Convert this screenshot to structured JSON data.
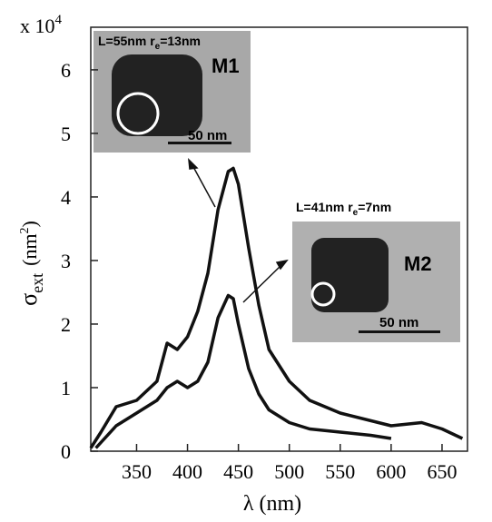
{
  "chart_data": {
    "type": "line",
    "multiplier": {
      "base": "x 10",
      "exponent": "4"
    },
    "x_label": "λ (nm)",
    "y_label": {
      "symbol": "σ",
      "subscript": "ext",
      "unit_pre": "(nm",
      "unit_sup": "2",
      "unit_post": ")"
    },
    "xlim": [
      305,
      675
    ],
    "ylim": [
      0,
      6.67
    ],
    "xticks": [
      350,
      400,
      450,
      500,
      550,
      600,
      650
    ],
    "yticks": [
      0,
      1,
      2,
      3,
      4,
      5,
      6
    ],
    "series": [
      {
        "color": "#111111",
        "x": [
          305,
          315,
          330,
          350,
          370,
          380,
          390,
          400,
          410,
          420,
          430,
          440,
          445,
          450,
          460,
          470,
          480,
          500,
          520,
          550,
          600,
          630,
          650,
          670
        ],
        "values": [
          0.05,
          0.3,
          0.7,
          0.8,
          1.1,
          1.7,
          1.6,
          1.8,
          2.2,
          2.8,
          3.8,
          4.4,
          4.45,
          4.2,
          3.2,
          2.3,
          1.6,
          1.1,
          0.8,
          0.6,
          0.4,
          0.45,
          0.35,
          0.2
        ]
      },
      {
        "color": "#111111",
        "x": [
          310,
          330,
          350,
          370,
          380,
          390,
          400,
          410,
          420,
          430,
          440,
          445,
          450,
          460,
          470,
          480,
          500,
          520,
          550,
          580,
          600
        ],
        "values": [
          0.05,
          0.4,
          0.6,
          0.8,
          1.0,
          1.1,
          1.0,
          1.1,
          1.4,
          2.1,
          2.45,
          2.4,
          2.0,
          1.3,
          0.9,
          0.65,
          0.45,
          0.35,
          0.3,
          0.25,
          0.2
        ]
      }
    ],
    "annotations": [
      {
        "label_pre": "L=55nm r",
        "label_sub": "e",
        "label_post": "=13nm",
        "name": "M1",
        "scale": "50 nm"
      },
      {
        "label_pre": "L=41nm r",
        "label_sub": "e",
        "label_post": "=7nm",
        "name": "M2",
        "scale": "50 nm"
      }
    ]
  }
}
